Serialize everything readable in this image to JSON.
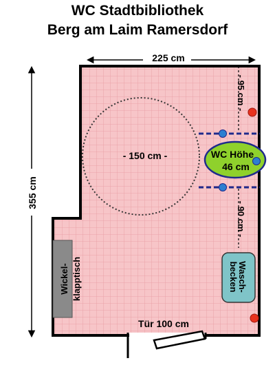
{
  "title_line1": "WC Stadtbibliothek",
  "title_line2": "Berg am Laim Ramersdorf",
  "dims": {
    "width": "225 cm",
    "height": "355 cm",
    "turning_circle": "- 150 cm -",
    "clearance_top": "- 95 cm -",
    "clearance_bottom": "- 90 cm -",
    "door": "Tür 100 cm"
  },
  "wc_label_line1": "WC Höhe",
  "wc_label_line2": "46 cm",
  "sink_line1": "Wasch-",
  "sink_line2": "becken",
  "changing_table_line1": "Wickel-",
  "changing_table_line2": "klapptisch",
  "colors": {
    "floor": "#f7c5c8",
    "grid": "#e79aa0",
    "wall": "#000000",
    "wc": "#8fd12c",
    "sink": "#7fc4c8",
    "table": "#8a8a8a",
    "grab_bar": "#1f2a8c",
    "blue_dot": "#2c7fd0",
    "red_dot": "#e8321e"
  }
}
